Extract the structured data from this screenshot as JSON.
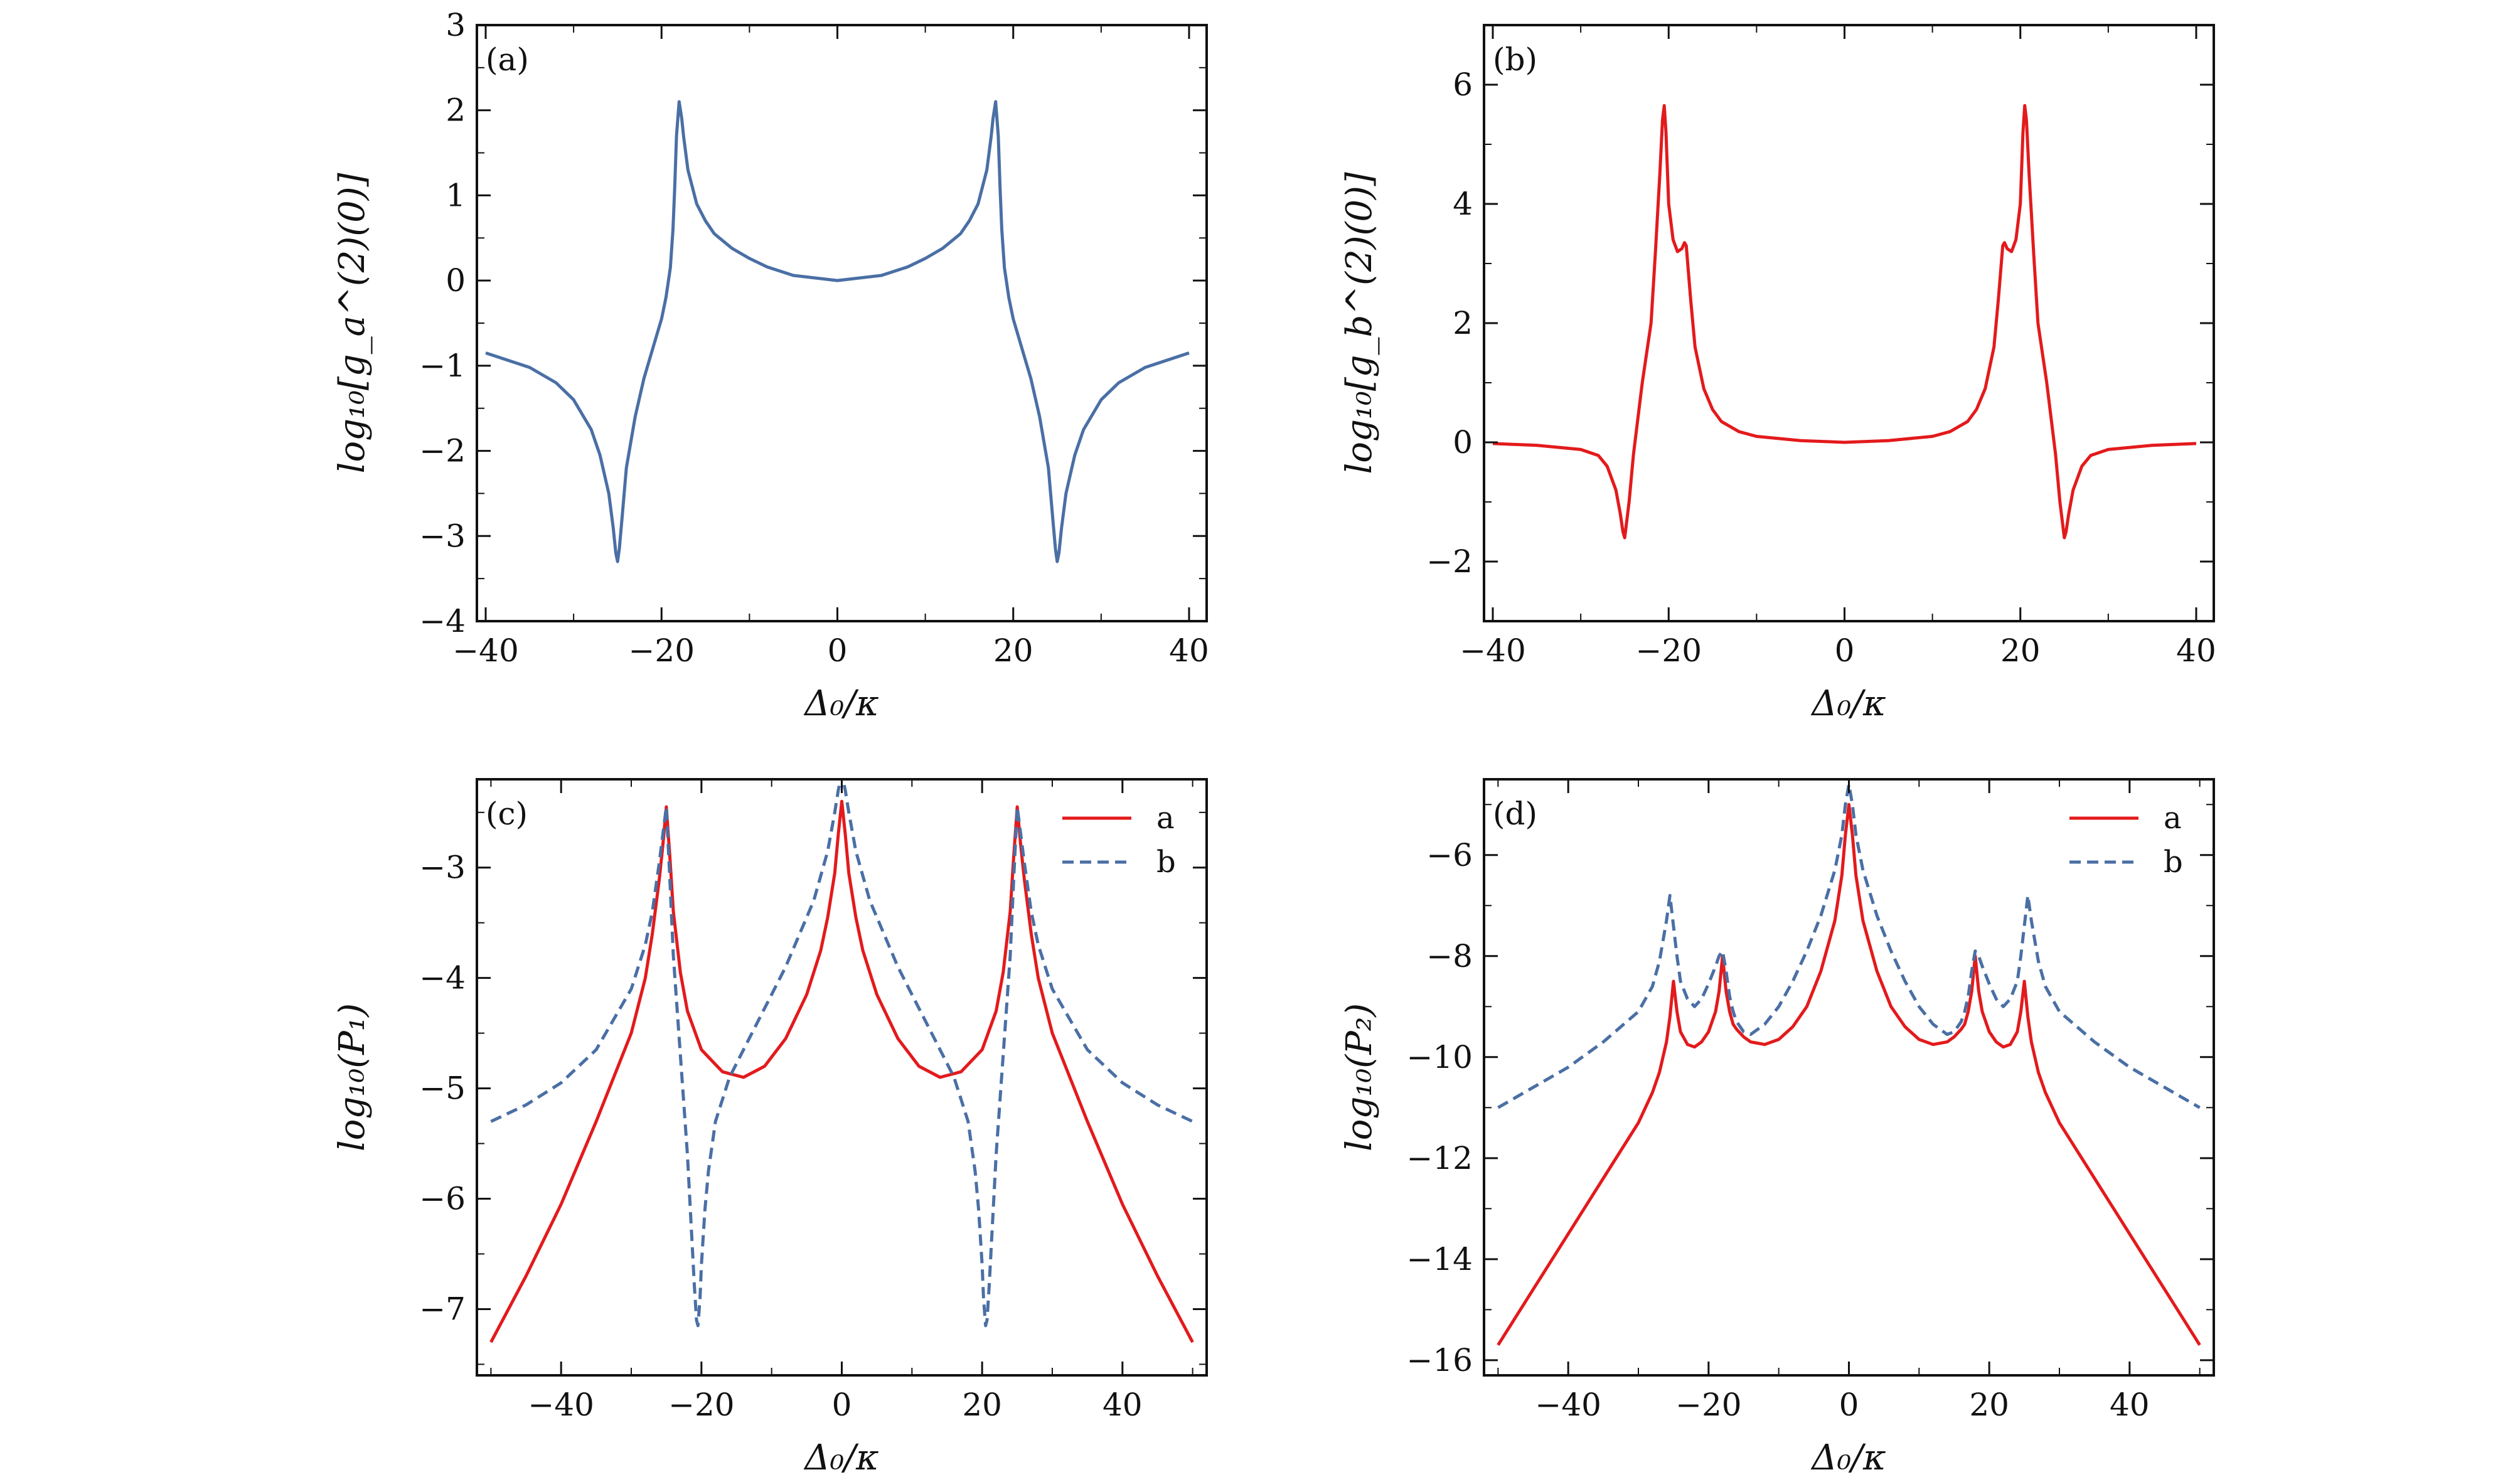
{
  "colors": {
    "red": "#e31a1c",
    "blue": "#4a6fa5",
    "axis": "#111111"
  },
  "chart_data": [
    {
      "type": "line",
      "panel_label": "(a)",
      "xlabel": "Δ₀/κ",
      "ylabel": "log₁₀[g_a^(2)(0)]",
      "xlim": [
        -41,
        42
      ],
      "ylim": [
        -4,
        3
      ],
      "xticks": [
        -40,
        -20,
        0,
        20,
        40
      ],
      "xtick_labels": [
        "−40",
        "−20",
        "0",
        "20",
        "40"
      ],
      "yticks": [
        -4,
        -3,
        -2,
        -1,
        0,
        1,
        2,
        3
      ],
      "ytick_labels": [
        "−4",
        "−3",
        "−2",
        "−1",
        "0",
        "1",
        "2",
        "3"
      ],
      "legend": null,
      "series": [
        {
          "name": "g_a",
          "color": "#4a6fa5",
          "dashed": false,
          "x": [
            -40,
            -35,
            -32,
            -30,
            -28,
            -27,
            -26,
            -25.5,
            -25.2,
            -25,
            -24.8,
            -24.5,
            -24,
            -23,
            -22,
            -21,
            -20,
            -19.5,
            -19,
            -18.7,
            -18.5,
            -18.3,
            -18,
            -17.7,
            -17.5,
            -17,
            -16,
            -15,
            -14,
            -12,
            -10,
            -8,
            -5,
            0,
            5,
            8,
            10,
            12,
            14,
            15,
            16,
            17,
            17.5,
            17.7,
            18,
            18.3,
            18.5,
            18.7,
            19,
            19.5,
            20,
            21,
            22,
            23,
            24,
            24.5,
            24.8,
            25,
            25.2,
            25.5,
            26,
            27,
            28,
            30,
            32,
            35,
            40
          ],
          "y": [
            -0.85,
            -1.02,
            -1.2,
            -1.4,
            -1.75,
            -2.05,
            -2.5,
            -2.9,
            -3.2,
            -3.3,
            -3.15,
            -2.8,
            -2.2,
            -1.6,
            -1.15,
            -0.8,
            -0.45,
            -0.2,
            0.15,
            0.6,
            1.1,
            1.7,
            2.1,
            1.9,
            1.7,
            1.3,
            0.9,
            0.7,
            0.55,
            0.38,
            0.26,
            0.16,
            0.06,
            0.0,
            0.06,
            0.16,
            0.26,
            0.38,
            0.55,
            0.7,
            0.9,
            1.3,
            1.7,
            1.9,
            2.1,
            1.7,
            1.1,
            0.6,
            0.15,
            -0.2,
            -0.45,
            -0.8,
            -1.15,
            -1.6,
            -2.2,
            -2.8,
            -3.15,
            -3.3,
            -3.2,
            -2.9,
            -2.5,
            -2.05,
            -1.75,
            -1.4,
            -1.2,
            -1.02,
            -0.85
          ]
        }
      ]
    },
    {
      "type": "line",
      "panel_label": "(b)",
      "xlabel": "Δ₀/κ",
      "ylabel": "log₁₀[g_b^(2)(0)]",
      "xlim": [
        -41,
        42
      ],
      "ylim": [
        -3,
        7
      ],
      "xticks": [
        -40,
        -20,
        0,
        20,
        40
      ],
      "xtick_labels": [
        "−40",
        "−20",
        "0",
        "20",
        "40"
      ],
      "yticks": [
        -2,
        0,
        2,
        4,
        6
      ],
      "ytick_labels": [
        "−2",
        "0",
        "2",
        "4",
        "6"
      ],
      "legend": null,
      "series": [
        {
          "name": "g_b",
          "color": "#e31a1c",
          "dashed": false,
          "x": [
            -40,
            -35,
            -30,
            -28,
            -27,
            -26,
            -25.5,
            -25.2,
            -25,
            -24.5,
            -24,
            -23,
            -22,
            -21.5,
            -21,
            -20.7,
            -20.5,
            -20.3,
            -20,
            -19.5,
            -19,
            -18.5,
            -18.2,
            -18,
            -17.5,
            -17,
            -16,
            -15,
            -14,
            -12,
            -10,
            -5,
            0,
            5,
            10,
            12,
            14,
            15,
            16,
            17,
            17.5,
            18,
            18.2,
            18.5,
            19,
            19.5,
            20,
            20.3,
            20.5,
            20.7,
            21,
            21.5,
            22,
            23,
            24,
            24.5,
            25,
            25.2,
            25.5,
            26,
            27,
            28,
            30,
            35,
            40
          ],
          "y": [
            -0.02,
            -0.05,
            -0.12,
            -0.22,
            -0.4,
            -0.8,
            -1.2,
            -1.5,
            -1.6,
            -1.0,
            -0.2,
            1.0,
            2.0,
            3.2,
            4.5,
            5.4,
            5.65,
            5.2,
            4.0,
            3.4,
            3.2,
            3.25,
            3.35,
            3.3,
            2.4,
            1.6,
            0.9,
            0.55,
            0.35,
            0.18,
            0.1,
            0.03,
            0.0,
            0.03,
            0.1,
            0.18,
            0.35,
            0.55,
            0.9,
            1.6,
            2.4,
            3.3,
            3.35,
            3.25,
            3.2,
            3.4,
            4.0,
            5.2,
            5.65,
            5.4,
            4.5,
            3.2,
            2.0,
            1.0,
            -0.2,
            -1.0,
            -1.6,
            -1.5,
            -1.2,
            -0.8,
            -0.4,
            -0.22,
            -0.12,
            -0.05,
            -0.02
          ]
        }
      ]
    },
    {
      "type": "line",
      "panel_label": "(c)",
      "xlabel": "Δ₀/κ",
      "ylabel": "log₁₀(P₁)",
      "xlim": [
        -52,
        52
      ],
      "ylim": [
        -7.6,
        -2.2
      ],
      "xticks": [
        -40,
        -20,
        0,
        20,
        40
      ],
      "xtick_labels": [
        "−40",
        "−20",
        "0",
        "20",
        "40"
      ],
      "yticks": [
        -7,
        -6,
        -5,
        -4,
        -3
      ],
      "ytick_labels": [
        "−7",
        "−6",
        "−5",
        "−4",
        "−3"
      ],
      "legend": {
        "position": "top-right",
        "entries": [
          "a",
          "b"
        ]
      },
      "series": [
        {
          "name": "a",
          "color": "#e31a1c",
          "dashed": false,
          "x": [
            -50,
            -45,
            -40,
            -35,
            -30,
            -28,
            -27,
            -26,
            -25.5,
            -25,
            -24.5,
            -24,
            -23,
            -22,
            -20,
            -17,
            -14,
            -11,
            -8,
            -5,
            -3,
            -2,
            -1,
            -0.5,
            0,
            0.5,
            1,
            2,
            3,
            5,
            8,
            11,
            14,
            17,
            20,
            22,
            23,
            24,
            24.5,
            25,
            25.5,
            26,
            27,
            28,
            30,
            35,
            40,
            45,
            50
          ],
          "y": [
            -7.3,
            -6.7,
            -6.05,
            -5.3,
            -4.5,
            -4.0,
            -3.6,
            -3.1,
            -2.8,
            -2.45,
            -2.9,
            -3.4,
            -3.95,
            -4.3,
            -4.65,
            -4.85,
            -4.9,
            -4.8,
            -4.55,
            -4.15,
            -3.75,
            -3.45,
            -3.05,
            -2.7,
            -2.4,
            -2.7,
            -3.05,
            -3.45,
            -3.75,
            -4.15,
            -4.55,
            -4.8,
            -4.9,
            -4.85,
            -4.65,
            -4.3,
            -3.95,
            -3.4,
            -2.9,
            -2.45,
            -2.8,
            -3.1,
            -3.6,
            -4.0,
            -4.5,
            -5.3,
            -6.05,
            -6.7,
            -7.3
          ]
        },
        {
          "name": "b",
          "color": "#4a6fa5",
          "dashed": true,
          "x": [
            -50,
            -45,
            -40,
            -35,
            -30,
            -28,
            -27,
            -26,
            -25.5,
            -25,
            -24.5,
            -24,
            -23,
            -22,
            -21.5,
            -21,
            -20.7,
            -20.5,
            -20.2,
            -20,
            -19.5,
            -19,
            -18,
            -16,
            -14,
            -12,
            -10,
            -8,
            -6,
            -4,
            -2,
            -1,
            -0.5,
            0,
            0.5,
            1,
            2,
            4,
            6,
            8,
            10,
            12,
            14,
            16,
            18,
            19,
            19.5,
            20,
            20.2,
            20.5,
            20.7,
            21,
            21.5,
            22,
            23,
            24,
            24.5,
            25,
            25.5,
            26,
            27,
            28,
            30,
            35,
            40,
            45,
            50
          ],
          "y": [
            -5.3,
            -5.15,
            -4.95,
            -4.65,
            -4.1,
            -3.7,
            -3.4,
            -2.95,
            -2.7,
            -2.45,
            -3.1,
            -3.8,
            -4.7,
            -5.6,
            -6.2,
            -6.8,
            -7.1,
            -7.15,
            -6.9,
            -6.6,
            -6.1,
            -5.75,
            -5.3,
            -4.9,
            -4.65,
            -4.4,
            -4.15,
            -3.9,
            -3.6,
            -3.3,
            -2.85,
            -2.5,
            -2.3,
            -2.15,
            -2.3,
            -2.5,
            -2.85,
            -3.3,
            -3.6,
            -3.9,
            -4.15,
            -4.4,
            -4.65,
            -4.9,
            -5.3,
            -5.75,
            -6.1,
            -6.6,
            -6.9,
            -7.15,
            -7.1,
            -6.8,
            -6.2,
            -5.6,
            -4.7,
            -3.8,
            -3.1,
            -2.45,
            -2.7,
            -2.95,
            -3.4,
            -3.7,
            -4.1,
            -4.65,
            -4.95,
            -5.15,
            -5.3
          ]
        }
      ]
    },
    {
      "type": "line",
      "panel_label": "(d)",
      "xlabel": "Δ₀/κ",
      "ylabel": "log₁₀(P₂)",
      "xlim": [
        -52,
        52
      ],
      "ylim": [
        -16.3,
        -4.5
      ],
      "xticks": [
        -40,
        -20,
        0,
        20,
        40
      ],
      "xtick_labels": [
        "−40",
        "−20",
        "0",
        "20",
        "40"
      ],
      "yticks": [
        -16,
        -14,
        -12,
        -10,
        -8,
        -6
      ],
      "ytick_labels": [
        "−16",
        "−14",
        "−12",
        "−10",
        "−8",
        "−6"
      ],
      "legend": {
        "position": "top-right",
        "entries": [
          "a",
          "b"
        ]
      },
      "series": [
        {
          "name": "a",
          "color": "#e31a1c",
          "dashed": false,
          "x": [
            -50,
            -45,
            -40,
            -35,
            -30,
            -28,
            -27,
            -26,
            -25.5,
            -25,
            -24.5,
            -24,
            -23,
            -22,
            -21,
            -20,
            -19,
            -18.5,
            -18,
            -17.5,
            -17,
            -16.5,
            -16,
            -15,
            -14,
            -12,
            -10,
            -8,
            -6,
            -4,
            -2,
            -1,
            -0.5,
            0,
            0.5,
            1,
            2,
            4,
            6,
            8,
            10,
            12,
            14,
            15,
            16,
            16.5,
            17,
            17.5,
            18,
            18.5,
            19,
            20,
            21,
            22,
            23,
            24,
            24.5,
            25,
            25.5,
            26,
            27,
            28,
            30,
            35,
            40,
            45,
            50
          ],
          "y": [
            -15.7,
            -14.6,
            -13.5,
            -12.4,
            -11.3,
            -10.7,
            -10.3,
            -9.7,
            -9.2,
            -8.5,
            -9.1,
            -9.5,
            -9.75,
            -9.8,
            -9.7,
            -9.5,
            -9.1,
            -8.7,
            -8.0,
            -8.7,
            -9.1,
            -9.35,
            -9.45,
            -9.6,
            -9.7,
            -9.75,
            -9.65,
            -9.4,
            -9.0,
            -8.3,
            -7.3,
            -6.4,
            -5.6,
            -5.0,
            -5.6,
            -6.4,
            -7.3,
            -8.3,
            -9.0,
            -9.4,
            -9.65,
            -9.75,
            -9.7,
            -9.6,
            -9.45,
            -9.35,
            -9.1,
            -8.7,
            -8.0,
            -8.7,
            -9.1,
            -9.5,
            -9.7,
            -9.8,
            -9.75,
            -9.5,
            -9.1,
            -8.5,
            -9.2,
            -9.7,
            -10.3,
            -10.7,
            -11.3,
            -12.4,
            -13.5,
            -14.6,
            -15.7
          ]
        },
        {
          "name": "b",
          "color": "#4a6fa5",
          "dashed": true,
          "x": [
            -50,
            -45,
            -40,
            -35,
            -30,
            -28,
            -27,
            -26,
            -25.5,
            -25,
            -24.5,
            -24,
            -23,
            -22,
            -21,
            -20,
            -19,
            -18.5,
            -18,
            -17.5,
            -17,
            -16.5,
            -16,
            -15,
            -14,
            -12,
            -10,
            -8,
            -6,
            -4,
            -2,
            -1,
            -0.5,
            0,
            0.5,
            1,
            2,
            4,
            6,
            8,
            10,
            12,
            14,
            15,
            16,
            16.5,
            17,
            17.5,
            18,
            18.5,
            19,
            20,
            21,
            22,
            23,
            24,
            24.5,
            25,
            25.5,
            26,
            27,
            28,
            30,
            35,
            40,
            45,
            50
          ],
          "y": [
            -11.0,
            -10.6,
            -10.2,
            -9.7,
            -9.1,
            -8.6,
            -8.1,
            -7.3,
            -6.8,
            -7.4,
            -8.0,
            -8.5,
            -8.85,
            -9.0,
            -8.85,
            -8.55,
            -8.2,
            -8.0,
            -7.9,
            -8.3,
            -8.8,
            -9.1,
            -9.3,
            -9.5,
            -9.55,
            -9.35,
            -9.0,
            -8.5,
            -7.9,
            -7.2,
            -6.3,
            -5.6,
            -5.0,
            -4.6,
            -5.0,
            -5.6,
            -6.3,
            -7.2,
            -7.9,
            -8.5,
            -9.0,
            -9.35,
            -9.55,
            -9.5,
            -9.3,
            -9.1,
            -8.8,
            -8.3,
            -7.9,
            -8.0,
            -8.2,
            -8.55,
            -8.85,
            -9.0,
            -8.85,
            -8.5,
            -8.0,
            -7.4,
            -6.8,
            -7.3,
            -8.1,
            -8.6,
            -9.1,
            -9.7,
            -10.2,
            -10.6,
            -11.0
          ]
        }
      ]
    }
  ]
}
